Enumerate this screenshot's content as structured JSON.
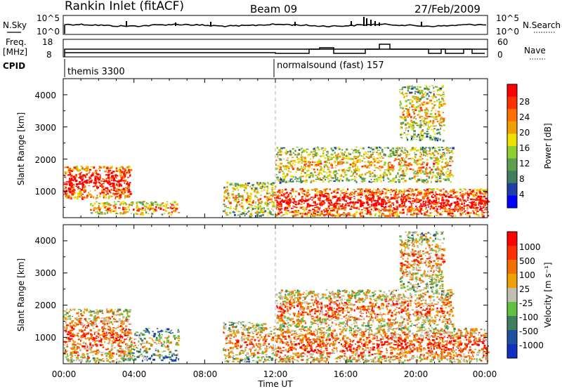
{
  "header": {
    "title": "Rankin Inlet (fitACF)",
    "beam": "Beam 09",
    "date": "27/Feb/2009"
  },
  "top_panels": {
    "nsky_label": "N.Sky",
    "nsky_ticks": [
      "10^5",
      "10^0"
    ],
    "nsearch_label": "N.Search",
    "nsearch_ticks": [
      "10^5",
      "10^0"
    ],
    "freq_label_top": "Freq.",
    "freq_label_bottom": "[MHz]",
    "freq_ticks": [
      "18",
      "8"
    ],
    "nave_label": "Nave",
    "nave_ticks": [
      "60",
      "0"
    ],
    "cpid_label": "CPID",
    "cpid_segments": [
      "themis 3300",
      "normalsound (fast) 157"
    ]
  },
  "chart_data": [
    {
      "type": "heatmap",
      "name": "power-panel",
      "ylabel": "Slant Range [km]",
      "yticks": [
        "4000",
        "3000",
        "2000",
        "1000"
      ],
      "ylim": [
        180,
        4500
      ],
      "xlim": [
        0,
        24
      ],
      "colorbar_label": "Power [dB]",
      "colorbar_ticks": [
        "28",
        "24",
        "20",
        "16",
        "12",
        "8",
        "4"
      ],
      "colors": [
        "#0000ff",
        "#1f3fa8",
        "#3f7f60",
        "#5fa050",
        "#8fd030",
        "#f0e000",
        "#f0a000",
        "#ff7000",
        "#ff3000",
        "#ff0000"
      ],
      "features": [
        {
          "t0": 0.0,
          "t1": 3.8,
          "r0": 800,
          "r1": 1800,
          "level": 0.85
        },
        {
          "t0": 1.5,
          "t1": 6.5,
          "r0": 300,
          "r1": 700,
          "level": 0.55
        },
        {
          "t0": 9.0,
          "t1": 12.0,
          "r0": 250,
          "r1": 1300,
          "level": 0.45
        },
        {
          "t0": 12.0,
          "t1": 24.0,
          "r0": 250,
          "r1": 1100,
          "level": 0.85
        },
        {
          "t0": 12.0,
          "t1": 22.0,
          "r0": 1300,
          "r1": 2400,
          "level": 0.45
        },
        {
          "t0": 19.0,
          "t1": 21.5,
          "r0": 2600,
          "r1": 4300,
          "level": 0.4
        }
      ]
    },
    {
      "type": "heatmap",
      "name": "velocity-panel",
      "ylabel": "Slant Range [km]",
      "yticks": [
        "4000",
        "3000",
        "2000",
        "1000"
      ],
      "ylim": [
        180,
        4500
      ],
      "xlim": [
        0,
        24
      ],
      "xticks": [
        "00:00",
        "04:00",
        "08:00",
        "12:00",
        "16:00",
        "20:00",
        "00:00"
      ],
      "xlabel": "Time UT",
      "colorbar_label": "Velocity [m s⁻¹]",
      "colorbar_ticks": [
        "1000",
        "500",
        "100",
        "25",
        "-25",
        "-100",
        "-500",
        "-1000"
      ],
      "colors": [
        "#1030c0",
        "#2050a0",
        "#3f7f60",
        "#60c040",
        "#c0c0b0",
        "#f0a000",
        "#f07000",
        "#ff3000",
        "#ff0000"
      ],
      "features": [
        {
          "t0": 0.0,
          "t1": 3.8,
          "r0": 250,
          "r1": 1900,
          "level": 0.6
        },
        {
          "t0": 3.5,
          "t1": 6.5,
          "r0": 300,
          "r1": 1300,
          "level": 0.3
        },
        {
          "t0": 9.0,
          "t1": 12.0,
          "r0": 250,
          "r1": 1500,
          "level": 0.5
        },
        {
          "t0": 12.0,
          "t1": 24.0,
          "r0": 250,
          "r1": 1300,
          "level": 0.65
        },
        {
          "t0": 12.0,
          "t1": 22.0,
          "r0": 1300,
          "r1": 2500,
          "level": 0.55
        },
        {
          "t0": 19.0,
          "t1": 21.5,
          "r0": 2500,
          "r1": 4300,
          "level": 0.5
        }
      ]
    }
  ]
}
